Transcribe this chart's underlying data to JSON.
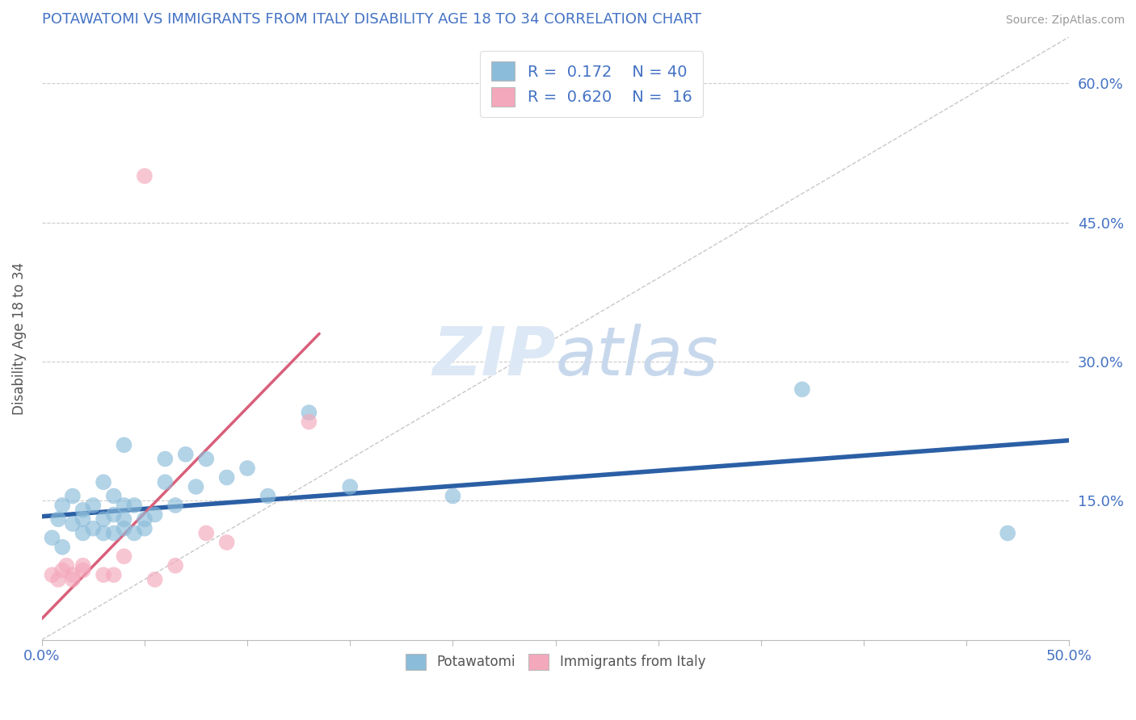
{
  "title": "POTAWATOMI VS IMMIGRANTS FROM ITALY DISABILITY AGE 18 TO 34 CORRELATION CHART",
  "source_text": "Source: ZipAtlas.com",
  "ylabel": "Disability Age 18 to 34",
  "xlim": [
    0.0,
    0.5
  ],
  "ylim": [
    0.0,
    0.65
  ],
  "xticks": [
    0.0,
    0.05,
    0.1,
    0.15,
    0.2,
    0.25,
    0.3,
    0.35,
    0.4,
    0.45,
    0.5
  ],
  "xtick_labels": [
    "0.0%",
    "",
    "",
    "",
    "",
    "",
    "",
    "",
    "",
    "",
    "50.0%"
  ],
  "ytick_labels": [
    "15.0%",
    "30.0%",
    "45.0%",
    "60.0%"
  ],
  "yticks": [
    0.15,
    0.3,
    0.45,
    0.6
  ],
  "legend_R1": "0.172",
  "legend_N1": "40",
  "legend_R2": "0.620",
  "legend_N2": "16",
  "blue_color": "#8bbcda",
  "pink_color": "#f4a8bc",
  "blue_line_color": "#2b5fa5",
  "pink_line_color": "#d95f7a",
  "watermark_color": "#dce8f5",
  "blue_points_x": [
    0.005,
    0.008,
    0.01,
    0.01,
    0.015,
    0.015,
    0.02,
    0.02,
    0.02,
    0.025,
    0.025,
    0.03,
    0.03,
    0.03,
    0.035,
    0.035,
    0.035,
    0.04,
    0.04,
    0.04,
    0.04,
    0.045,
    0.045,
    0.05,
    0.05,
    0.055,
    0.06,
    0.06,
    0.065,
    0.07,
    0.075,
    0.08,
    0.09,
    0.1,
    0.11,
    0.13,
    0.15,
    0.2,
    0.37,
    0.47
  ],
  "blue_points_y": [
    0.11,
    0.13,
    0.1,
    0.145,
    0.125,
    0.155,
    0.115,
    0.13,
    0.14,
    0.12,
    0.145,
    0.115,
    0.13,
    0.17,
    0.115,
    0.135,
    0.155,
    0.12,
    0.13,
    0.145,
    0.21,
    0.115,
    0.145,
    0.12,
    0.13,
    0.135,
    0.17,
    0.195,
    0.145,
    0.2,
    0.165,
    0.195,
    0.175,
    0.185,
    0.155,
    0.245,
    0.165,
    0.155,
    0.27,
    0.115
  ],
  "pink_points_x": [
    0.005,
    0.008,
    0.01,
    0.012,
    0.015,
    0.015,
    0.02,
    0.02,
    0.03,
    0.035,
    0.04,
    0.055,
    0.065,
    0.08,
    0.09,
    0.13
  ],
  "pink_points_y": [
    0.07,
    0.065,
    0.075,
    0.08,
    0.065,
    0.07,
    0.075,
    0.08,
    0.07,
    0.07,
    0.09,
    0.065,
    0.08,
    0.115,
    0.105,
    0.235
  ],
  "pink_outlier_x": [
    0.05
  ],
  "pink_outlier_y": [
    0.5
  ],
  "blue_trend_x": [
    0.0,
    0.5
  ],
  "blue_trend_y": [
    0.133,
    0.215
  ],
  "pink_trend_x": [
    -0.01,
    0.135
  ],
  "pink_trend_y": [
    0.0,
    0.33
  ],
  "diag_line_x": [
    0.0,
    0.5
  ],
  "diag_line_y": [
    0.0,
    0.65
  ]
}
